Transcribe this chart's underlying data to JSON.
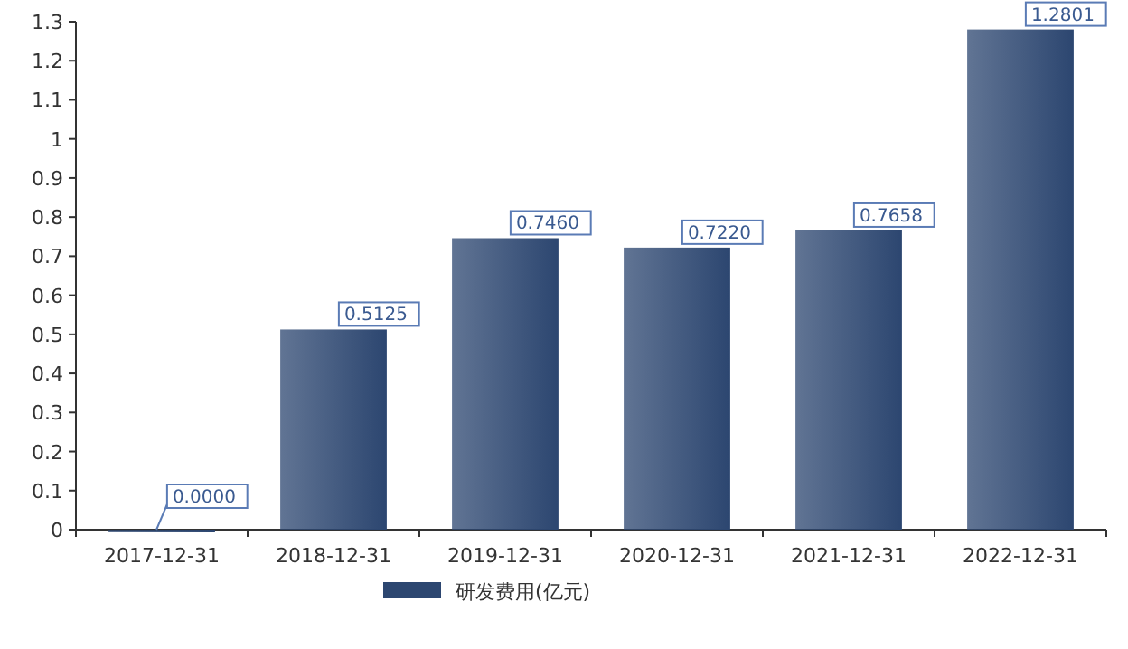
{
  "chart_data": {
    "type": "bar",
    "categories": [
      "2017-12-31",
      "2018-12-31",
      "2019-12-31",
      "2020-12-31",
      "2021-12-31",
      "2022-12-31"
    ],
    "series": [
      {
        "name": "研发费用(亿元)",
        "color": "#2c4670",
        "values": [
          0.0,
          0.5125,
          0.746,
          0.722,
          0.7658,
          1.2801
        ],
        "value_labels": [
          "0.0000",
          "0.5125",
          "0.7460",
          "0.7220",
          "0.7658",
          "1.2801"
        ]
      }
    ],
    "ylim": [
      0,
      1.3
    ],
    "yticks": [
      0,
      0.1,
      0.2,
      0.3,
      0.4,
      0.5,
      0.6,
      0.7,
      0.8,
      0.9,
      1,
      1.1,
      1.2,
      1.3
    ],
    "grid": false,
    "legend": "bottom"
  }
}
